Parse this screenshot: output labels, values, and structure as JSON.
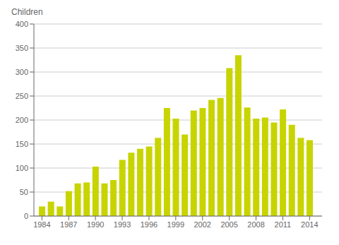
{
  "chart_data": {
    "type": "bar",
    "ylabel": "Children",
    "x": [
      1984,
      1985,
      1986,
      1987,
      1988,
      1989,
      1990,
      1991,
      1992,
      1993,
      1994,
      1995,
      1996,
      1997,
      1998,
      1999,
      2000,
      2001,
      2002,
      2003,
      2004,
      2005,
      2006,
      2007,
      2008,
      2009,
      2010,
      2011,
      2012,
      2013,
      2014
    ],
    "values": [
      20,
      30,
      20,
      52,
      68,
      70,
      103,
      68,
      75,
      117,
      132,
      140,
      145,
      163,
      225,
      203,
      170,
      220,
      225,
      242,
      246,
      308,
      335,
      226,
      203,
      205,
      195,
      222,
      190,
      163,
      158
    ],
    "color": "#c8d400",
    "xlim": [
      1983.1,
      2015.4
    ],
    "xticks": [
      1984,
      1987,
      1990,
      1993,
      1996,
      1999,
      2002,
      2005,
      2008,
      2011,
      2014
    ],
    "ylim": [
      0,
      400
    ],
    "yticks": [
      0,
      50,
      100,
      150,
      200,
      250,
      300,
      350,
      400
    ],
    "grid": true
  }
}
